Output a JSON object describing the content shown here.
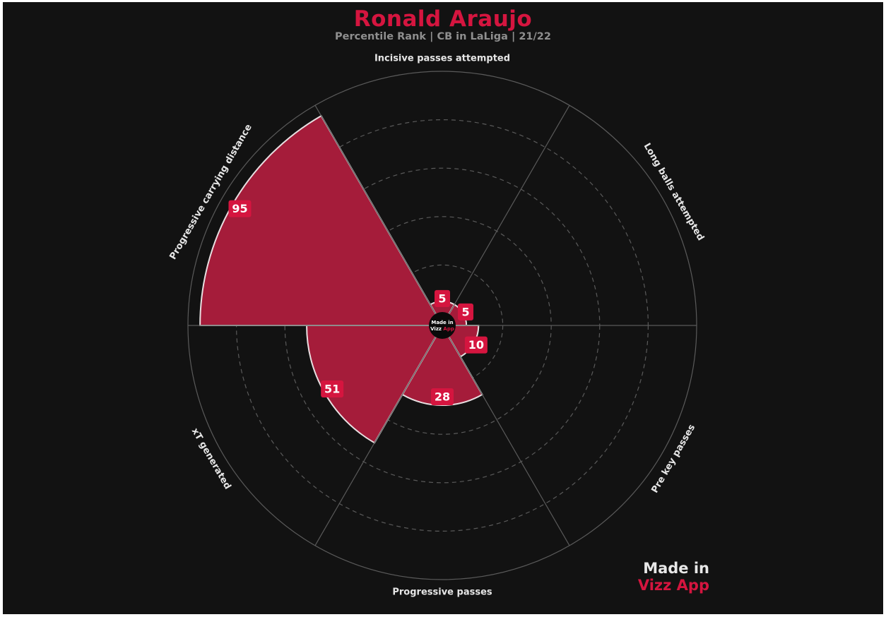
{
  "title": "Ronald Araujo",
  "subtitle": "Percentile Rank | CB in LaLiga | 21/22",
  "brand": {
    "line1": "Made in",
    "line2": "Vizz App"
  },
  "center_badge": {
    "line1": "Made in",
    "line2_a": "Vizz ",
    "line2_b": "App"
  },
  "colors": {
    "background": "#121212",
    "accent": "#d5153f",
    "bar_fill": "#a51c3a",
    "grid": "#5a5a5a"
  },
  "chart_data": {
    "type": "polar-bar",
    "title": "Ronald Araujo",
    "subtitle": "Percentile Rank | CB in LaLiga | 21/22",
    "rlim": [
      0,
      100
    ],
    "grid": true,
    "categories": [
      "Incisive passes attempted",
      "Long balls attempted",
      "Pre key passes",
      "Progressive passes",
      "xT generated",
      "Progressive carrying distance"
    ],
    "values": [
      5,
      5,
      10,
      28,
      51,
      95
    ]
  }
}
